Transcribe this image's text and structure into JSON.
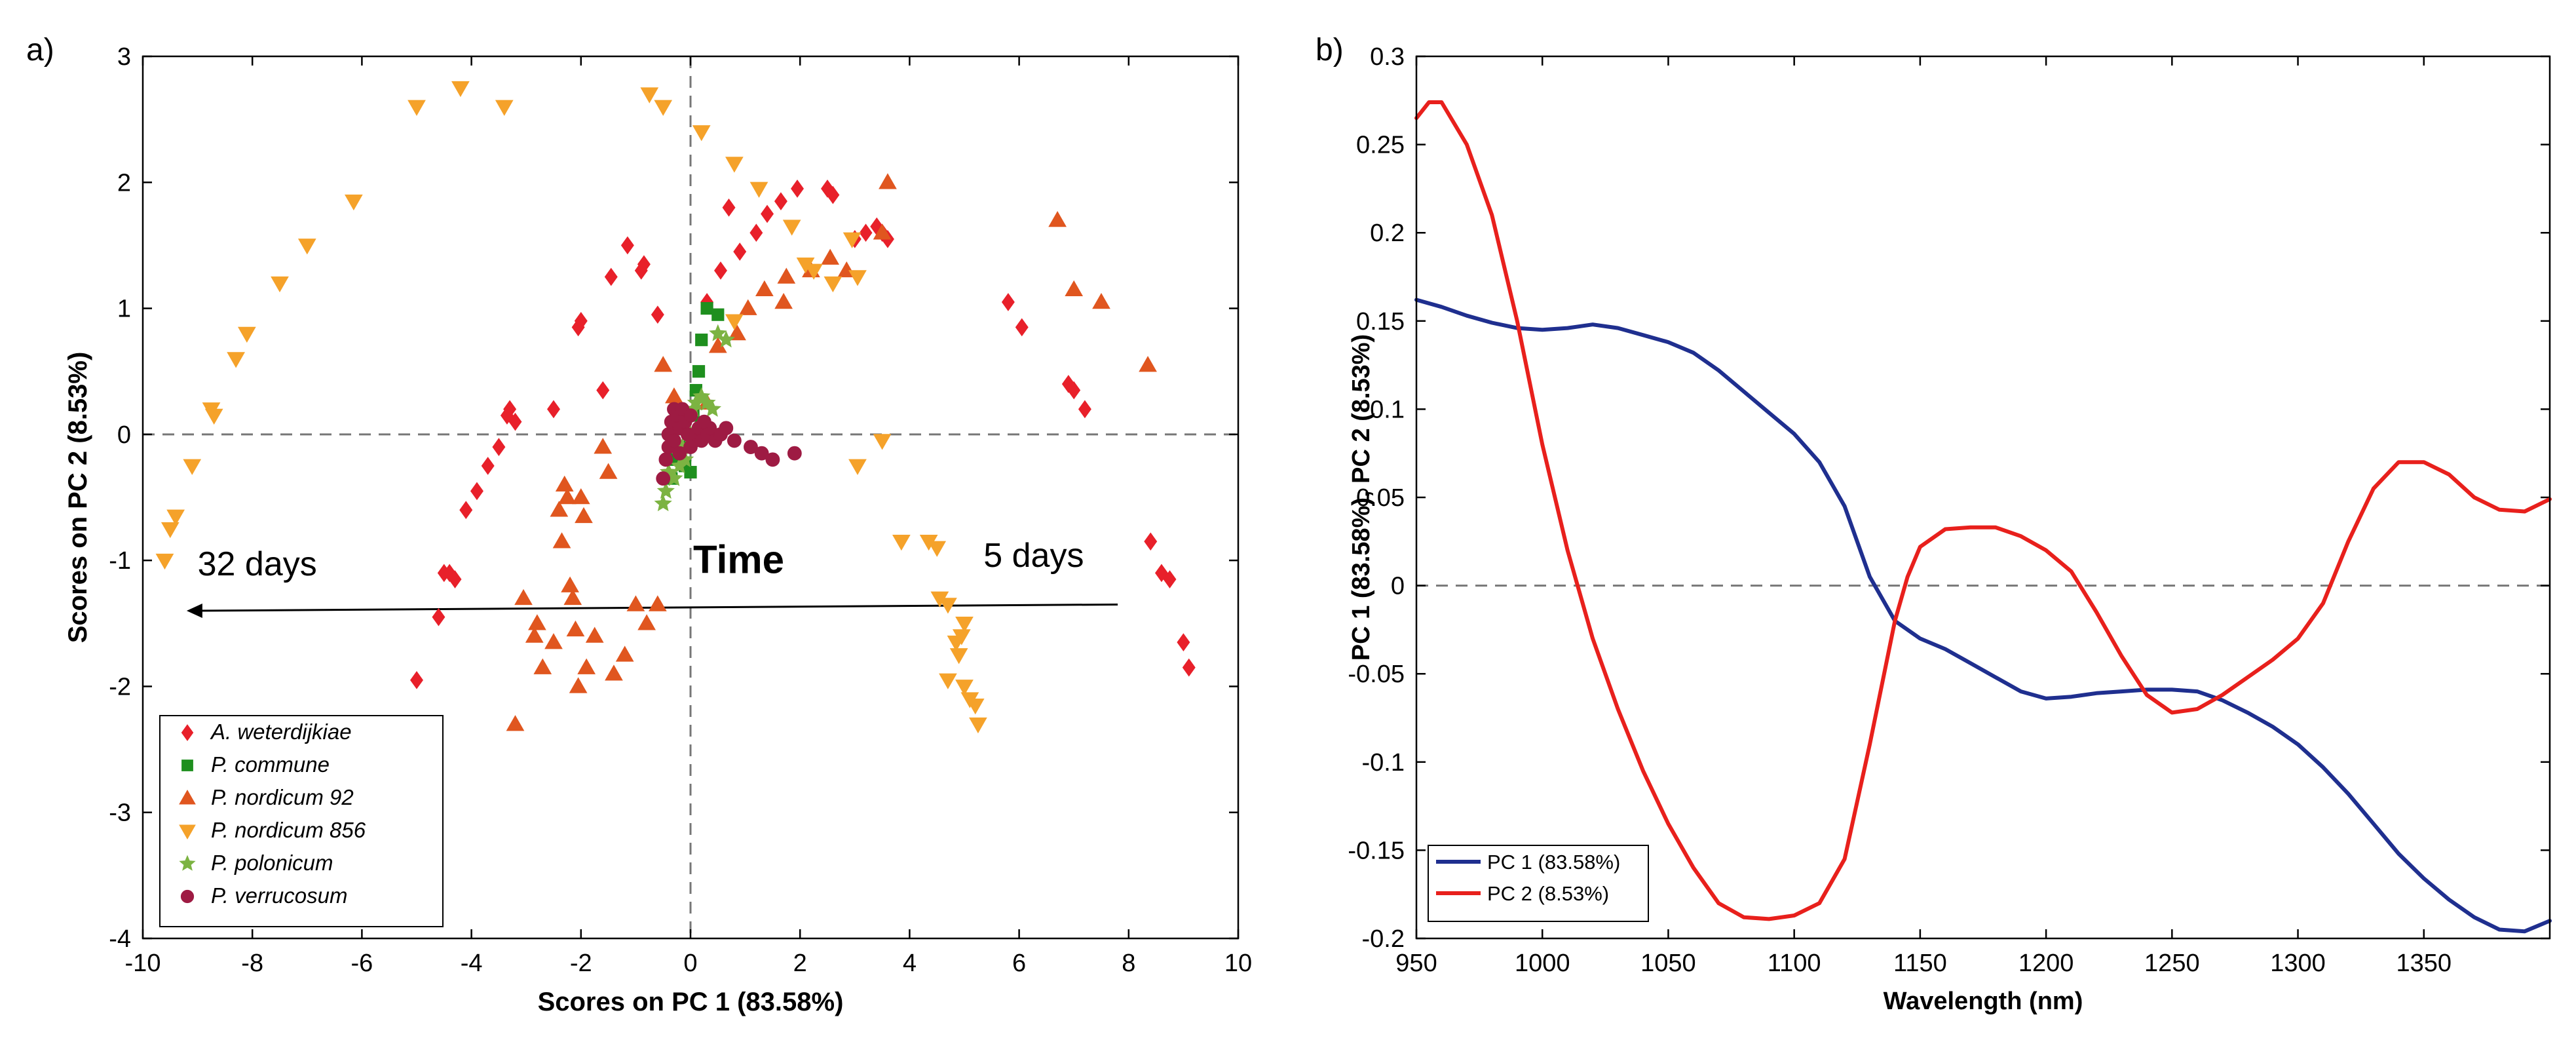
{
  "chart_data": [
    {
      "panel_label": "a)",
      "type": "scatter",
      "xlabel": "Scores on PC 1 (83.58%)",
      "ylabel": "Scores on PC 2 (8.53%)",
      "xlim": [
        -10,
        10
      ],
      "ylim": [
        -4,
        3
      ],
      "xticks": [
        -10,
        -8,
        -6,
        -4,
        -2,
        0,
        2,
        4,
        6,
        8,
        10
      ],
      "yticks": [
        -4,
        -3,
        -2,
        -1,
        0,
        1,
        2,
        3
      ],
      "grid": false,
      "reference_lines": {
        "x": 0,
        "y": 0,
        "style": "dashed"
      },
      "legend_position": "bottom-left",
      "annotations": {
        "arrow_label": "Time",
        "left_label": "32 days",
        "right_label": "5 days",
        "arrow": {
          "from": [
            7.8,
            -1.35
          ],
          "to": [
            -9.2,
            -1.4
          ]
        }
      },
      "series": [
        {
          "name": "A. weterdijkiae",
          "marker": "diamond",
          "color": "#e8202a",
          "points": [
            [
              -5.0,
              -1.95
            ],
            [
              -4.6,
              -1.45
            ],
            [
              -4.5,
              -1.1
            ],
            [
              -4.4,
              -1.1
            ],
            [
              -4.3,
              -1.15
            ],
            [
              -4.1,
              -0.6
            ],
            [
              -3.9,
              -0.45
            ],
            [
              -3.7,
              -0.25
            ],
            [
              -3.5,
              -0.1
            ],
            [
              -3.35,
              0.15
            ],
            [
              -3.3,
              0.2
            ],
            [
              -3.2,
              0.1
            ],
            [
              -2.5,
              0.2
            ],
            [
              -2.05,
              0.85
            ],
            [
              -2.0,
              0.9
            ],
            [
              -1.6,
              0.35
            ],
            [
              -1.45,
              1.25
            ],
            [
              -1.15,
              1.5
            ],
            [
              -0.9,
              1.3
            ],
            [
              -0.85,
              1.35
            ],
            [
              -0.6,
              0.95
            ],
            [
              0.3,
              1.05
            ],
            [
              0.55,
              1.3
            ],
            [
              0.7,
              1.8
            ],
            [
              0.9,
              1.45
            ],
            [
              1.2,
              1.6
            ],
            [
              1.4,
              1.75
            ],
            [
              1.65,
              1.85
            ],
            [
              1.95,
              1.95
            ],
            [
              2.5,
              1.95
            ],
            [
              2.6,
              1.9
            ],
            [
              3.0,
              1.55
            ],
            [
              3.2,
              1.6
            ],
            [
              3.4,
              1.65
            ],
            [
              3.5,
              1.6
            ],
            [
              3.6,
              1.55
            ],
            [
              5.8,
              1.05
            ],
            [
              6.05,
              0.85
            ],
            [
              6.9,
              0.4
            ],
            [
              7.0,
              0.35
            ],
            [
              7.2,
              0.2
            ],
            [
              8.4,
              -0.85
            ],
            [
              8.6,
              -1.1
            ],
            [
              8.75,
              -1.15
            ],
            [
              9.0,
              -1.65
            ],
            [
              9.1,
              -1.85
            ]
          ]
        },
        {
          "name": "P. commune",
          "marker": "square",
          "color": "#1e8f1e",
          "points": [
            [
              -0.35,
              -0.35
            ],
            [
              -0.3,
              -0.2
            ],
            [
              -0.15,
              -0.1
            ],
            [
              0.0,
              -0.3
            ],
            [
              0.05,
              0.15
            ],
            [
              0.1,
              0.35
            ],
            [
              0.15,
              0.5
            ],
            [
              0.2,
              0.75
            ],
            [
              0.3,
              1.0
            ],
            [
              0.5,
              0.95
            ],
            [
              -0.1,
              -0.25
            ],
            [
              0.05,
              -0.05
            ]
          ]
        },
        {
          "name": "P. nordicum 92",
          "marker": "triangle-up",
          "color": "#e0561f",
          "points": [
            [
              -3.2,
              -2.3
            ],
            [
              -3.05,
              -1.3
            ],
            [
              -2.85,
              -1.6
            ],
            [
              -2.8,
              -1.5
            ],
            [
              -2.7,
              -1.85
            ],
            [
              -2.5,
              -1.65
            ],
            [
              -2.4,
              -0.6
            ],
            [
              -2.35,
              -0.85
            ],
            [
              -2.3,
              -0.4
            ],
            [
              -2.25,
              -0.5
            ],
            [
              -2.2,
              -1.2
            ],
            [
              -2.15,
              -1.3
            ],
            [
              -2.1,
              -1.55
            ],
            [
              -2.05,
              -2.0
            ],
            [
              -2.0,
              -0.5
            ],
            [
              -1.95,
              -0.65
            ],
            [
              -1.9,
              -1.85
            ],
            [
              -1.75,
              -1.6
            ],
            [
              -1.6,
              -0.1
            ],
            [
              -1.5,
              -0.3
            ],
            [
              -1.4,
              -1.9
            ],
            [
              -1.2,
              -1.75
            ],
            [
              -1.0,
              -1.35
            ],
            [
              -0.8,
              -1.5
            ],
            [
              -0.6,
              -1.35
            ],
            [
              -0.5,
              0.55
            ],
            [
              -0.3,
              0.3
            ],
            [
              -0.35,
              0.05
            ],
            [
              0.3,
              0.25
            ],
            [
              0.5,
              0.7
            ],
            [
              0.85,
              0.8
            ],
            [
              1.05,
              1.0
            ],
            [
              1.35,
              1.15
            ],
            [
              1.7,
              1.05
            ],
            [
              1.75,
              1.25
            ],
            [
              2.2,
              1.3
            ],
            [
              2.55,
              1.4
            ],
            [
              2.85,
              1.3
            ],
            [
              3.5,
              1.6
            ],
            [
              3.6,
              2.0
            ],
            [
              6.7,
              1.7
            ],
            [
              7.0,
              1.15
            ],
            [
              7.5,
              1.05
            ],
            [
              8.35,
              0.55
            ]
          ]
        },
        {
          "name": "P. nordicum 856",
          "marker": "triangle-down",
          "color": "#f5a22a",
          "points": [
            [
              -9.6,
              -1.0
            ],
            [
              -9.5,
              -0.75
            ],
            [
              -9.4,
              -0.65
            ],
            [
              -9.1,
              -0.25
            ],
            [
              -8.75,
              0.2
            ],
            [
              -8.7,
              0.15
            ],
            [
              -8.3,
              0.6
            ],
            [
              -8.1,
              0.8
            ],
            [
              -7.5,
              1.2
            ],
            [
              -7.0,
              1.5
            ],
            [
              -6.15,
              1.85
            ],
            [
              -5.0,
              2.6
            ],
            [
              -4.2,
              2.75
            ],
            [
              -3.4,
              2.6
            ],
            [
              -0.75,
              2.7
            ],
            [
              -0.5,
              2.6
            ],
            [
              0.2,
              2.4
            ],
            [
              0.8,
              2.15
            ],
            [
              1.25,
              1.95
            ],
            [
              1.85,
              1.65
            ],
            [
              2.1,
              1.35
            ],
            [
              2.25,
              1.3
            ],
            [
              2.6,
              1.2
            ],
            [
              2.95,
              1.55
            ],
            [
              3.05,
              1.25
            ],
            [
              0.8,
              0.9
            ],
            [
              3.5,
              -0.05
            ],
            [
              3.85,
              -0.85
            ],
            [
              4.35,
              -0.85
            ],
            [
              4.5,
              -0.9
            ],
            [
              4.55,
              -1.3
            ],
            [
              4.7,
              -1.35
            ],
            [
              4.85,
              -1.65
            ],
            [
              4.9,
              -1.75
            ],
            [
              5.0,
              -2.0
            ],
            [
              5.1,
              -2.1
            ],
            [
              5.2,
              -2.15
            ],
            [
              5.25,
              -2.3
            ],
            [
              5.0,
              -1.5
            ],
            [
              4.95,
              -1.6
            ],
            [
              4.7,
              -1.95
            ],
            [
              3.05,
              -0.25
            ]
          ]
        },
        {
          "name": "P. polonicum",
          "marker": "star",
          "color": "#7cb342",
          "points": [
            [
              -0.5,
              -0.55
            ],
            [
              -0.45,
              -0.45
            ],
            [
              -0.4,
              -0.3
            ],
            [
              -0.3,
              -0.35
            ],
            [
              -0.2,
              -0.25
            ],
            [
              -0.15,
              -0.1
            ],
            [
              -0.1,
              -0.2
            ],
            [
              0.0,
              0.0
            ],
            [
              0.05,
              0.2
            ],
            [
              0.1,
              0.25
            ],
            [
              0.2,
              0.3
            ],
            [
              0.3,
              0.25
            ],
            [
              0.5,
              0.8
            ],
            [
              0.65,
              0.75
            ],
            [
              0.4,
              0.2
            ],
            [
              -0.3,
              0.05
            ]
          ]
        },
        {
          "name": "P. verrucosum",
          "marker": "circle",
          "color": "#9e1b43",
          "points": [
            [
              -0.5,
              -0.35
            ],
            [
              -0.45,
              -0.2
            ],
            [
              -0.4,
              0.0
            ],
            [
              -0.35,
              0.1
            ],
            [
              -0.3,
              0.2
            ],
            [
              -0.25,
              0.15
            ],
            [
              -0.2,
              0.05
            ],
            [
              -0.15,
              0.2
            ],
            [
              -0.1,
              0.1
            ],
            [
              -0.05,
              0.0
            ],
            [
              0.0,
              -0.1
            ],
            [
              0.05,
              -0.05
            ],
            [
              0.1,
              0.0
            ],
            [
              0.15,
              0.05
            ],
            [
              0.2,
              -0.05
            ],
            [
              0.3,
              0.0
            ],
            [
              0.35,
              0.05
            ],
            [
              0.45,
              -0.05
            ],
            [
              0.55,
              0.0
            ],
            [
              0.65,
              0.05
            ],
            [
              0.8,
              -0.05
            ],
            [
              1.1,
              -0.1
            ],
            [
              1.3,
              -0.15
            ],
            [
              1.5,
              -0.2
            ],
            [
              1.9,
              -0.15
            ],
            [
              -0.4,
              -0.1
            ],
            [
              -0.2,
              -0.15
            ],
            [
              0.0,
              0.15
            ],
            [
              0.25,
              0.1
            ],
            [
              -0.3,
              -0.05
            ]
          ]
        }
      ]
    },
    {
      "panel_label": "b)",
      "type": "line",
      "xlabel": "Wavelength (nm)",
      "ylabel": "PC 1 (83.58%), PC 2 (8.53%)",
      "xlim": [
        950,
        1400
      ],
      "ylim": [
        -0.2,
        0.3
      ],
      "xticks": [
        950,
        1000,
        1050,
        1100,
        1150,
        1200,
        1250,
        1300,
        1350
      ],
      "yticks": [
        -0.2,
        -0.15,
        -0.1,
        -0.05,
        0,
        0.05,
        0.1,
        0.15,
        0.2,
        0.25,
        0.3
      ],
      "grid": false,
      "reference_lines": {
        "y": 0,
        "style": "dashed"
      },
      "legend_position": "bottom-left",
      "series": [
        {
          "name": "PC 1 (83.58%)",
          "color": "#1f2f8f",
          "x": [
            950,
            960,
            970,
            980,
            990,
            1000,
            1010,
            1020,
            1030,
            1040,
            1050,
            1060,
            1070,
            1080,
            1090,
            1100,
            1110,
            1120,
            1130,
            1140,
            1150,
            1160,
            1170,
            1180,
            1190,
            1200,
            1210,
            1220,
            1230,
            1240,
            1250,
            1260,
            1270,
            1280,
            1290,
            1300,
            1310,
            1320,
            1330,
            1340,
            1350,
            1360,
            1370,
            1380,
            1390,
            1400
          ],
          "values": [
            0.162,
            0.158,
            0.153,
            0.149,
            0.146,
            0.145,
            0.146,
            0.148,
            0.146,
            0.142,
            0.138,
            0.132,
            0.122,
            0.11,
            0.098,
            0.086,
            0.07,
            0.045,
            0.005,
            -0.02,
            -0.03,
            -0.036,
            -0.044,
            -0.052,
            -0.06,
            -0.064,
            -0.063,
            -0.061,
            -0.06,
            -0.059,
            -0.059,
            -0.06,
            -0.065,
            -0.072,
            -0.08,
            -0.09,
            -0.103,
            -0.118,
            -0.135,
            -0.152,
            -0.166,
            -0.178,
            -0.188,
            -0.195,
            -0.196,
            -0.19
          ]
        },
        {
          "name": "PC 2 (8.53%)",
          "color": "#e8201c",
          "x": [
            950,
            955,
            960,
            970,
            980,
            990,
            1000,
            1010,
            1020,
            1030,
            1040,
            1050,
            1060,
            1070,
            1080,
            1090,
            1100,
            1110,
            1120,
            1130,
            1140,
            1145,
            1150,
            1160,
            1170,
            1180,
            1190,
            1200,
            1210,
            1220,
            1230,
            1240,
            1250,
            1260,
            1270,
            1280,
            1290,
            1300,
            1310,
            1320,
            1330,
            1340,
            1350,
            1360,
            1370,
            1380,
            1390,
            1400
          ],
          "values": [
            0.265,
            0.274,
            0.274,
            0.25,
            0.21,
            0.15,
            0.08,
            0.02,
            -0.03,
            -0.07,
            -0.105,
            -0.135,
            -0.16,
            -0.18,
            -0.188,
            -0.189,
            -0.187,
            -0.18,
            -0.155,
            -0.09,
            -0.02,
            0.005,
            0.022,
            0.032,
            0.033,
            0.033,
            0.028,
            0.02,
            0.008,
            -0.015,
            -0.04,
            -0.062,
            -0.072,
            -0.07,
            -0.062,
            -0.052,
            -0.042,
            -0.03,
            -0.01,
            0.025,
            0.055,
            0.07,
            0.07,
            0.063,
            0.05,
            0.043,
            0.042,
            0.049
          ]
        }
      ]
    }
  ]
}
